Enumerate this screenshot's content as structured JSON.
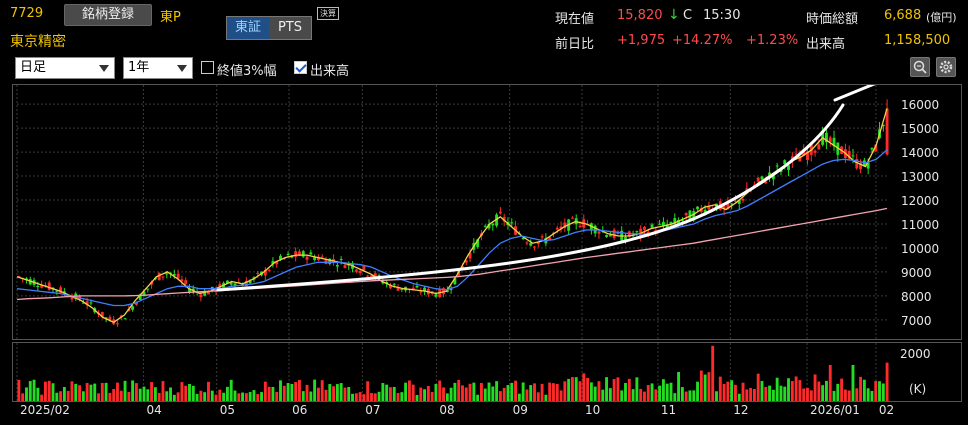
{
  "header": {
    "code": "7729",
    "register_label": "銘柄登録",
    "market": "東P",
    "company": "東京精密",
    "exchange_tabs": [
      {
        "label": "東証",
        "active": true
      },
      {
        "label": "PTS",
        "active": false
      }
    ],
    "settle_badge": "決算"
  },
  "quote": {
    "price_label": "現在値",
    "price": "15,820",
    "arrow": "↓",
    "flag": "C",
    "time": "15:30",
    "mcap_label": "時価総額",
    "mcap": "6,688",
    "mcap_unit": "(億円)",
    "change_label": "前日比",
    "change": "+1,975",
    "change_pct": "+14.27%",
    "extra_pct": "+1.23%",
    "volume_label": "出来高",
    "volume": "1,158,500"
  },
  "controls": {
    "period": "日足",
    "range": "1年",
    "close3_label": "終値3%幅",
    "close3_checked": false,
    "volume_label": "出来高",
    "volume_checked": true
  },
  "colors": {
    "up": "#ff2a2a",
    "down": "#22dd22",
    "ma_short": "#f2d447",
    "ma_mid": "#3f7fff",
    "ma_long": "#f3a3b0",
    "annotation": "#ffffff",
    "grid": "#3a3a3a"
  },
  "chart_data": {
    "type": "line",
    "title": "",
    "x_labels": [
      "2025/02",
      "04",
      "05",
      "06",
      "07",
      "08",
      "09",
      "10",
      "11",
      "12",
      "2026/01",
      "02"
    ],
    "y_ticks": [
      7000,
      8000,
      9000,
      10000,
      11000,
      12000,
      13000,
      14000,
      15000,
      16000
    ],
    "ylim": [
      6200,
      16800
    ],
    "series": [
      {
        "values": [
          8800,
          8650,
          8500,
          8350,
          8200,
          8000,
          7800,
          7500,
          7100,
          6900,
          7200,
          7800,
          8300,
          8800,
          9000,
          8700,
          8300,
          8100,
          8200,
          8400,
          8600,
          8500,
          8700,
          9000,
          9400,
          9600,
          9700,
          9700,
          9600,
          9500,
          9400,
          9300,
          9100,
          8900,
          8600,
          8400,
          8300,
          8250,
          8200,
          8100,
          8200,
          8900,
          9700,
          10400,
          11000,
          11300,
          10900,
          10500,
          10200,
          10300,
          10600,
          10900,
          11100,
          11000,
          10800,
          10600,
          10500,
          10500,
          10600,
          10800,
          10900,
          11000,
          11200,
          11400,
          11700,
          11800,
          11600,
          11900,
          12300,
          12700,
          13000,
          13300,
          13600,
          13800,
          14100,
          14600,
          14300,
          14000,
          13600,
          13400,
          14300,
          15820
        ]
      },
      {
        "values": [
          8300,
          8250,
          8200,
          8150,
          8100,
          8000,
          7900,
          7800,
          7700,
          7600,
          7600,
          7700,
          7900,
          8100,
          8300,
          8400,
          8400,
          8300,
          8300,
          8300,
          8400,
          8450,
          8500,
          8600,
          8800,
          9000,
          9200,
          9300,
          9400,
          9400,
          9400,
          9350,
          9300,
          9200,
          9000,
          8800,
          8650,
          8500,
          8400,
          8300,
          8250,
          8400,
          8800,
          9300,
          9800,
          10200,
          10400,
          10500,
          10400,
          10300,
          10350,
          10500,
          10650,
          10750,
          10750,
          10700,
          10650,
          10600,
          10580,
          10600,
          10700,
          10800,
          10900,
          11000,
          11200,
          11350,
          11450,
          11550,
          11750,
          12000,
          12250,
          12500,
          12750,
          13000,
          13250,
          13500,
          13650,
          13700,
          13650,
          13550,
          13700,
          14100
        ]
      },
      {
        "values": [
          7850,
          7880,
          7900,
          7920,
          7950,
          7980,
          8000,
          8000,
          8000,
          8000,
          8000,
          8010,
          8030,
          8060,
          8090,
          8120,
          8150,
          8170,
          8200,
          8220,
          8250,
          8270,
          8300,
          8330,
          8360,
          8390,
          8420,
          8450,
          8480,
          8510,
          8540,
          8570,
          8600,
          8630,
          8650,
          8670,
          8690,
          8710,
          8730,
          8750,
          8770,
          8800,
          8850,
          8900,
          8970,
          9040,
          9110,
          9180,
          9250,
          9320,
          9390,
          9460,
          9530,
          9600,
          9660,
          9720,
          9780,
          9840,
          9900,
          9960,
          10020,
          10080,
          10140,
          10200,
          10280,
          10360,
          10440,
          10520,
          10600,
          10680,
          10760,
          10840,
          10920,
          11000,
          11080,
          11160,
          11240,
          11320,
          11400,
          11480,
          11560,
          11650
        ]
      }
    ]
  }
}
